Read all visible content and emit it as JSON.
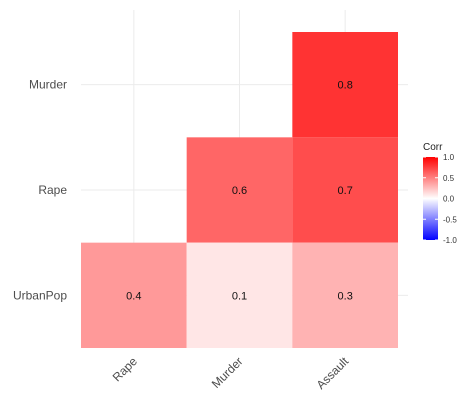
{
  "chart_data": {
    "type": "heatmap",
    "title": "",
    "xlabel": "",
    "ylabel": "",
    "x_categories": [
      "Rape",
      "Murder",
      "Assault"
    ],
    "y_categories": [
      "UrbanPop",
      "Rape",
      "Murder"
    ],
    "cells": [
      {
        "x": "Assault",
        "y": "Murder",
        "value": 0.8,
        "label": "0.8"
      },
      {
        "x": "Murder",
        "y": "Rape",
        "value": 0.6,
        "label": "0.6"
      },
      {
        "x": "Assault",
        "y": "Rape",
        "value": 0.7,
        "label": "0.7"
      },
      {
        "x": "Rape",
        "y": "UrbanPop",
        "value": 0.4,
        "label": "0.4"
      },
      {
        "x": "Murder",
        "y": "UrbanPop",
        "value": 0.1,
        "label": "0.1"
      },
      {
        "x": "Assault",
        "y": "UrbanPop",
        "value": 0.3,
        "label": "0.3"
      }
    ],
    "color_scale": {
      "low": "#0000ff",
      "mid": "#ffffff",
      "high": "#ff0000",
      "range": [
        -1.0,
        1.0
      ]
    },
    "legend": {
      "title": "Corr",
      "position": "right",
      "ticks": [
        1.0,
        0.5,
        0.0,
        -0.5,
        -1.0
      ],
      "tick_labels": [
        "1.0",
        "0.5",
        "0.0",
        "-0.5",
        "-1.0"
      ]
    },
    "grid": true
  }
}
